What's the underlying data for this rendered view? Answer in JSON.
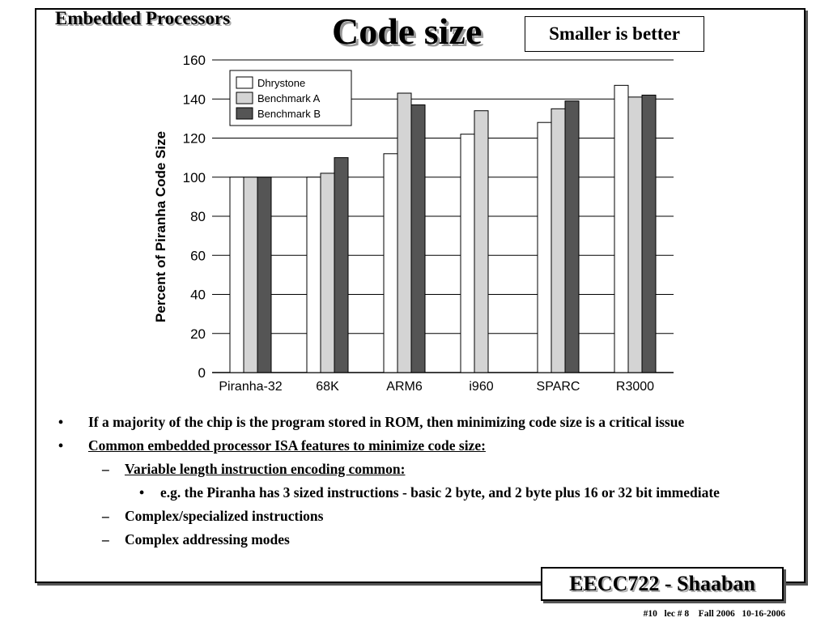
{
  "slide": {
    "top_label": "Embedded Processors",
    "title": "Code size",
    "note": "Smaller is better"
  },
  "chart_data": {
    "type": "bar",
    "categories": [
      "Piranha-32",
      "68K",
      "ARM6",
      "i960",
      "SPARC",
      "R3000"
    ],
    "series": [
      {
        "name": "Dhrystone",
        "values": [
          100,
          100,
          112,
          122,
          128,
          147
        ],
        "color": "#ffffff"
      },
      {
        "name": "Benchmark A",
        "values": [
          100,
          102,
          143,
          134,
          135,
          141
        ],
        "color": "#d4d4d4"
      },
      {
        "name": "Benchmark B",
        "values": [
          100,
          110,
          137,
          null,
          139,
          142
        ],
        "color": "#555555"
      }
    ],
    "title": "",
    "xlabel": "",
    "ylabel": "Percent of Piranha Code Size",
    "ylim": [
      0,
      160
    ],
    "yticks": [
      0,
      20,
      40,
      60,
      80,
      100,
      120,
      140,
      160
    ],
    "grid": "horizontal",
    "legend_position": "top-left"
  },
  "bullets": [
    {
      "level": 1,
      "marker": "•",
      "text": "If a majority of the chip is the program stored in ROM, then minimizing code size is a critical issue",
      "underline": false
    },
    {
      "level": 1,
      "marker": "•",
      "text": "Common embedded processor ISA features to minimize code size:",
      "underline": true
    },
    {
      "level": 2,
      "marker": "–",
      "text": "Variable length instruction encoding common:",
      "underline": true
    },
    {
      "level": 3,
      "marker": "•",
      "text": "e.g. the Piranha has 3 sized instructions - basic 2 byte, and 2 byte plus 16 or 32 bit immediate",
      "underline": false
    },
    {
      "level": 2,
      "marker": "–",
      "text": "Complex/specialized  instructions",
      "underline": false
    },
    {
      "level": 2,
      "marker": "–",
      "text": "Complex addressing modes",
      "underline": false
    }
  ],
  "footer": {
    "course": "EECC722 - Shaaban",
    "meta": "#10   lec # 8    Fall 2006   10-16-2006"
  }
}
